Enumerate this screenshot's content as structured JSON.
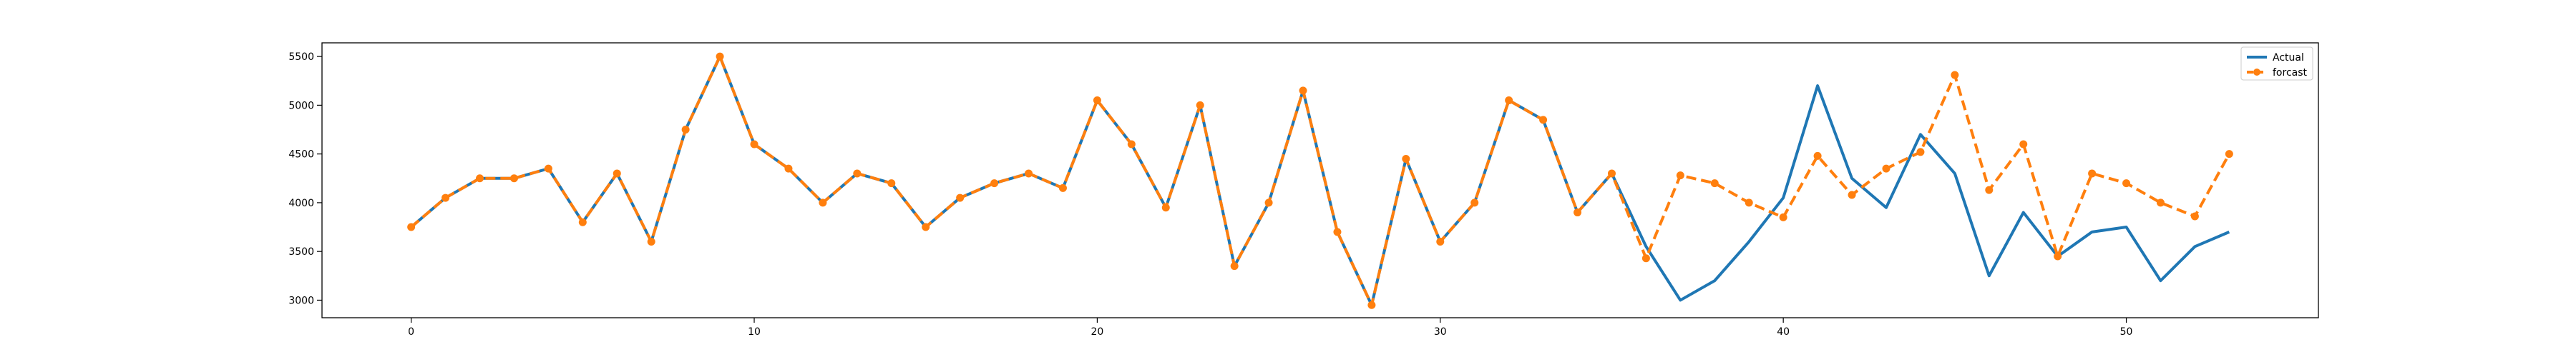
{
  "chart_data": {
    "type": "line",
    "title": "",
    "xlabel": "",
    "ylabel": "",
    "xlim": [
      -2.6,
      55.6
    ],
    "ylim": [
      2820,
      5640
    ],
    "xticks": [
      0,
      10,
      20,
      30,
      40,
      50
    ],
    "yticks": [
      3000,
      3500,
      4000,
      4500,
      5000,
      5500
    ],
    "grid": false,
    "legend_position": "top-right",
    "series": [
      {
        "name": "Actual",
        "color": "#1f77b4",
        "style": "solid",
        "x": [
          0,
          1,
          2,
          3,
          4,
          5,
          6,
          7,
          8,
          9,
          10,
          11,
          12,
          13,
          14,
          15,
          16,
          17,
          18,
          19,
          20,
          21,
          22,
          23,
          24,
          25,
          26,
          27,
          28,
          29,
          30,
          31,
          32,
          33,
          34,
          35,
          36,
          37,
          38,
          39,
          40,
          41,
          42,
          43,
          44,
          45,
          46,
          47,
          48,
          49,
          50,
          51,
          52,
          53
        ],
        "values": [
          3750,
          4050,
          4250,
          4250,
          4350,
          3800,
          4300,
          3600,
          4750,
          5500,
          4600,
          4350,
          4000,
          4300,
          4200,
          3750,
          4050,
          4200,
          4300,
          4150,
          5050,
          4600,
          3950,
          5000,
          3350,
          4000,
          5150,
          3700,
          2950,
          4450,
          3600,
          4000,
          5050,
          4850,
          3900,
          4300,
          3550,
          3000,
          3200,
          3600,
          4050,
          5200,
          4250,
          3950,
          4700,
          4300,
          3250,
          3900,
          3450,
          3700,
          3750,
          3200,
          3550,
          3700
        ]
      },
      {
        "name": "forcast",
        "color": "#ff7f0e",
        "style": "dashed",
        "marker": "circle",
        "x": [
          0,
          1,
          2,
          3,
          4,
          5,
          6,
          7,
          8,
          9,
          10,
          11,
          12,
          13,
          14,
          15,
          16,
          17,
          18,
          19,
          20,
          21,
          22,
          23,
          24,
          25,
          26,
          27,
          28,
          29,
          30,
          31,
          32,
          33,
          34,
          35,
          36,
          37,
          38,
          39,
          40,
          41,
          42,
          43,
          44,
          45,
          46,
          47,
          48,
          49,
          50,
          51,
          52,
          53
        ],
        "values": [
          3750,
          4050,
          4250,
          4250,
          4350,
          3800,
          4300,
          3600,
          4750,
          5500,
          4600,
          4350,
          4000,
          4300,
          4200,
          3750,
          4050,
          4200,
          4300,
          4150,
          5050,
          4600,
          3950,
          5000,
          3350,
          4000,
          5150,
          3700,
          2950,
          4450,
          3600,
          4000,
          5050,
          4850,
          3900,
          4300,
          3430,
          4280,
          4200,
          4000,
          3850,
          4480,
          4080,
          4350,
          4520,
          5310,
          4130,
          4600,
          3450,
          4300,
          4200,
          4000,
          3860,
          4500
        ]
      }
    ]
  }
}
